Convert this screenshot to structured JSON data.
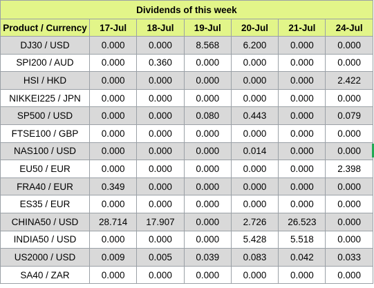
{
  "title": "Dividends of this week",
  "columns": [
    "Product / Currency",
    "17-Jul",
    "18-Jul",
    "19-Jul",
    "20-Jul",
    "21-Jul",
    "24-Jul"
  ],
  "rows": [
    {
      "product": "DJ30 / USD",
      "values": [
        "0.000",
        "0.000",
        "8.568",
        "6.200",
        "0.000",
        "0.000"
      ]
    },
    {
      "product": "SPI200 / AUD",
      "values": [
        "0.000",
        "0.360",
        "0.000",
        "0.000",
        "0.000",
        "0.000"
      ]
    },
    {
      "product": "HSI / HKD",
      "values": [
        "0.000",
        "0.000",
        "0.000",
        "0.000",
        "0.000",
        "2.422"
      ]
    },
    {
      "product": "NIKKEI225 / JPN",
      "values": [
        "0.000",
        "0.000",
        "0.000",
        "0.000",
        "0.000",
        "0.000"
      ]
    },
    {
      "product": "SP500 / USD",
      "values": [
        "0.000",
        "0.000",
        "0.080",
        "0.443",
        "0.000",
        "0.079"
      ]
    },
    {
      "product": "FTSE100 / GBP",
      "values": [
        "0.000",
        "0.000",
        "0.000",
        "0.000",
        "0.000",
        "0.000"
      ]
    },
    {
      "product": "NAS100 / USD",
      "values": [
        "0.000",
        "0.000",
        "0.000",
        "0.014",
        "0.000",
        "0.000"
      ]
    },
    {
      "product": "EU50 / EUR",
      "values": [
        "0.000",
        "0.000",
        "0.000",
        "0.000",
        "0.000",
        "2.398"
      ]
    },
    {
      "product": "FRA40 / EUR",
      "values": [
        "0.349",
        "0.000",
        "0.000",
        "0.000",
        "0.000",
        "0.000"
      ]
    },
    {
      "product": "ES35 / EUR",
      "values": [
        "0.000",
        "0.000",
        "0.000",
        "0.000",
        "0.000",
        "0.000"
      ]
    },
    {
      "product": "CHINA50 / USD",
      "values": [
        "28.714",
        "17.907",
        "0.000",
        "2.726",
        "26.523",
        "0.000"
      ]
    },
    {
      "product": "INDIA50 / USD",
      "values": [
        "0.000",
        "0.000",
        "0.000",
        "5.428",
        "5.518",
        "0.000"
      ]
    },
    {
      "product": "US2000 / USD",
      "values": [
        "0.009",
        "0.005",
        "0.039",
        "0.083",
        "0.042",
        "0.033"
      ]
    },
    {
      "product": "SA40 / ZAR",
      "values": [
        "0.000",
        "0.000",
        "0.000",
        "0.000",
        "0.000",
        "0.000"
      ]
    }
  ],
  "colors": {
    "header_bg": "#e2f589",
    "stripe_bg": "#d9d9d9",
    "border": "#9aa0a6"
  }
}
